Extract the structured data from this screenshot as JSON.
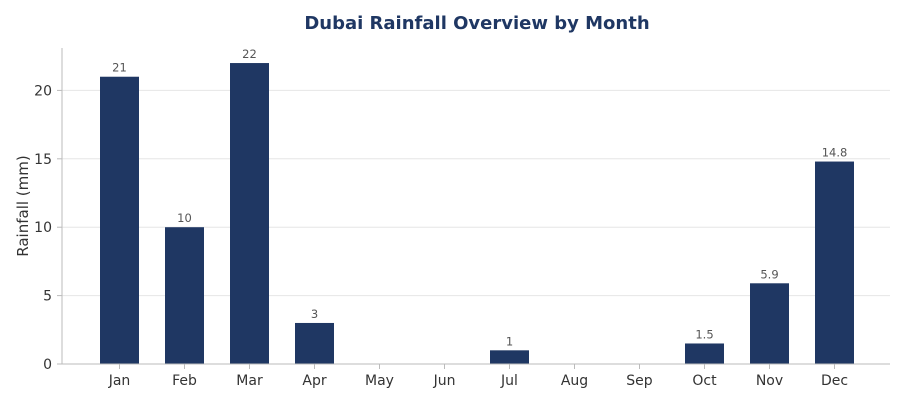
{
  "chart_data": {
    "type": "bar",
    "title": "Dubai Rainfall Overview by Month",
    "xlabel": "",
    "ylabel": "Rainfall (mm)",
    "categories": [
      "Jan",
      "Feb",
      "Mar",
      "Apr",
      "May",
      "Jun",
      "Jul",
      "Aug",
      "Sep",
      "Oct",
      "Nov",
      "Dec"
    ],
    "values": [
      21,
      10,
      22,
      3,
      0,
      0,
      1,
      0,
      0,
      1.5,
      5.9,
      14.8
    ],
    "data_labels": [
      "21",
      "10",
      "22",
      "3",
      "",
      "",
      "1",
      "",
      "",
      "1.5",
      "5.9",
      "14.8"
    ],
    "yticks": [
      0,
      5,
      10,
      15,
      20
    ],
    "ylim": [
      0,
      23.1
    ],
    "grid": "horizontal",
    "legend": "none",
    "colors": {
      "bar": "#1f3763",
      "title": "#1f3763",
      "grid": "#e6e6e6",
      "axis": "#bbbbbb"
    }
  }
}
